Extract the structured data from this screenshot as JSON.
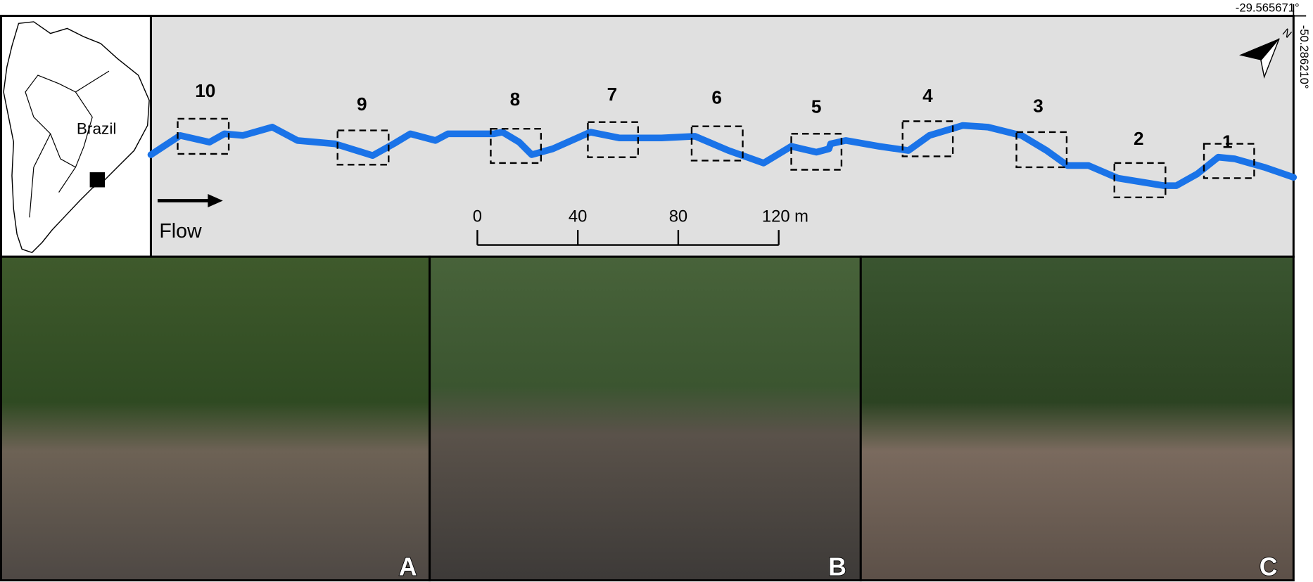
{
  "coordinates": {
    "latitude": "-29.565671°",
    "longitude": "-50.286210°"
  },
  "inset_map": {
    "label": "Brazil"
  },
  "north_arrow": "N",
  "flow_label": "Flow",
  "sites": [
    "10",
    "9",
    "8",
    "7",
    "6",
    "5",
    "4",
    "3",
    "2",
    "1"
  ],
  "scale_bar": {
    "ticks": [
      "0",
      "40",
      "80",
      "120 m"
    ]
  },
  "photos": [
    "A",
    "B",
    "C"
  ]
}
